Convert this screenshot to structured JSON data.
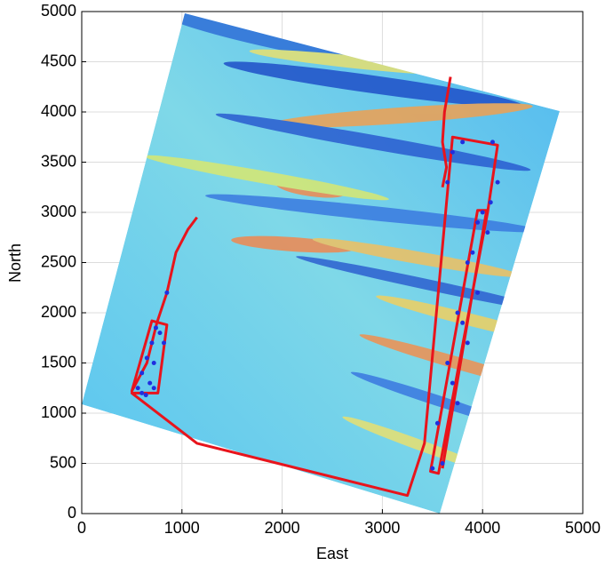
{
  "chart_data": {
    "type": "line",
    "xlabel": "East",
    "ylabel": "North",
    "xlim": [
      0,
      5000
    ],
    "xticks": [
      0,
      1000,
      2000,
      3000,
      4000,
      5000
    ],
    "ylim": [
      0,
      5000
    ],
    "yticks": [
      0,
      500,
      1000,
      1500,
      2000,
      2500,
      3000,
      3500,
      4000,
      4500,
      5000
    ],
    "grid": true,
    "series": [
      {
        "color": "#e8141c",
        "style": "line",
        "x": [
          1150,
          1060,
          940,
          850,
          750,
          650,
          500,
          700,
          850,
          760,
          500,
          1150,
          3250,
          3420,
          3700,
          4150,
          4050,
          3560,
          3480,
          3950,
          4040,
          3600,
          null,
          3680,
          3620,
          3600,
          3640,
          3600
        ],
        "values": [
          2950,
          2830,
          2600,
          2200,
          1900,
          1500,
          1220,
          1920,
          1880,
          1200,
          1200,
          700,
          180,
          700,
          3750,
          3670,
          3000,
          400,
          420,
          3020,
          3020,
          450,
          null,
          4350,
          4000,
          3700,
          3450,
          3250
        ]
      },
      {
        "color": "#1f2fe0",
        "style": "points",
        "x": [
          560,
          600,
          650,
          700,
          740,
          780,
          720,
          680,
          640,
          820,
          850,
          600,
          720,
          3500,
          3550,
          3650,
          3750,
          3850,
          3950,
          4050,
          3950,
          3850,
          3750,
          3600,
          3700,
          3800,
          3900,
          4000,
          3650,
          3700,
          3800,
          4100,
          4150,
          4080
        ],
        "values": [
          1250,
          1400,
          1550,
          1700,
          1850,
          1800,
          1500,
          1300,
          1180,
          1700,
          2200,
          1200,
          1250,
          450,
          900,
          1500,
          2000,
          2500,
          2900,
          2800,
          2200,
          1700,
          1100,
          500,
          1300,
          1900,
          2600,
          3000,
          3300,
          3600,
          3700,
          3700,
          3300,
          3100
        ]
      }
    ]
  }
}
